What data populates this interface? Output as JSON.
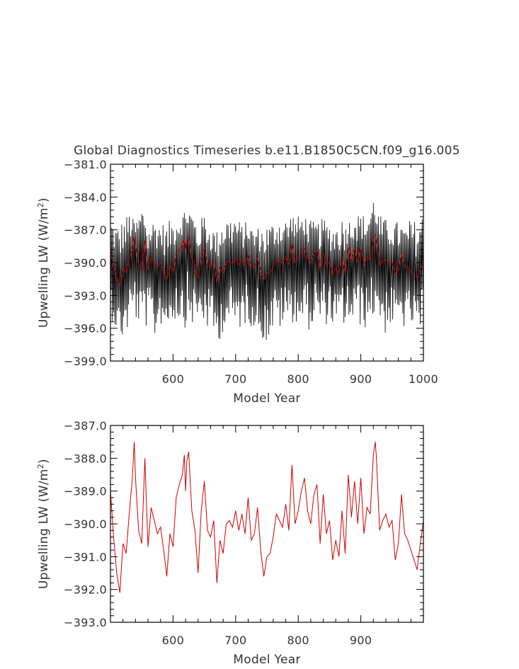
{
  "title": "Global Diagnostics Timeseries b.e11.B1850C5CN.f09_g16.005",
  "colors": {
    "annual": "#000000",
    "smoothed": "#cc0000",
    "axes": "#000000",
    "text": "#333333"
  },
  "chart_data": [
    {
      "type": "line",
      "ylabel_main": "Upwelling LW (W/m",
      "ylabel_sup": "2",
      "ylabel_end": ")",
      "xlabel": "Model Year",
      "xlim": [
        500,
        1000
      ],
      "ylim": [
        -399.0,
        -381.0
      ],
      "x_ticks": [
        600,
        700,
        800,
        900,
        1000
      ],
      "x_tick_labels": [
        "600",
        "700",
        "800",
        "900",
        "1000"
      ],
      "y_ticks": [
        -399.0,
        -396.0,
        -393.0,
        -390.0,
        -387.0,
        -384.0,
        -381.0
      ],
      "y_tick_labels": [
        "−399.0",
        "−396.0",
        "−393.0",
        "−390.0",
        "−387.0",
        "−384.0",
        "−381.0"
      ],
      "series": [
        {
          "role": "envelope",
          "color": "#000000",
          "x": [
            500,
            510,
            520,
            530,
            540,
            550,
            560,
            570,
            580,
            590,
            600,
            610,
            620,
            630,
            640,
            650,
            660,
            670,
            680,
            690,
            700,
            710,
            720,
            730,
            740,
            750,
            760,
            770,
            780,
            790,
            800,
            810,
            820,
            830,
            840,
            850,
            860,
            870,
            880,
            890,
            900,
            910,
            920,
            930,
            940,
            950,
            960,
            970,
            980,
            990,
            1000
          ],
          "upper": [
            -385.8,
            -386.5,
            -386.0,
            -385.3,
            -386.4,
            -384.3,
            -386.8,
            -385.9,
            -386.2,
            -386.5,
            -385.7,
            -385.9,
            -384.9,
            -385.0,
            -386.3,
            -385.5,
            -386.7,
            -387.0,
            -385.7,
            -385.8,
            -385.6,
            -386.5,
            -386.1,
            -386.9,
            -386.6,
            -386.4,
            -386.2,
            -385.8,
            -386.0,
            -385.4,
            -385.7,
            -385.6,
            -386.1,
            -386.4,
            -385.9,
            -386.4,
            -386.3,
            -385.9,
            -386.2,
            -385.3,
            -385.6,
            -385.4,
            -383.9,
            -385.6,
            -386.0,
            -386.1,
            -386.2,
            -386.8,
            -385.9,
            -386.2,
            -385.4
          ],
          "lower": [
            -395.0,
            -396.4,
            -397.3,
            -396.0,
            -395.5,
            -395.8,
            -396.1,
            -397.3,
            -395.7,
            -396.0,
            -395.3,
            -395.5,
            -396.0,
            -395.8,
            -395.3,
            -395.9,
            -396.5,
            -397.8,
            -396.3,
            -395.8,
            -396.5,
            -396.0,
            -395.5,
            -396.2,
            -396.9,
            -397.5,
            -396.3,
            -396.2,
            -395.9,
            -395.5,
            -395.7,
            -396.0,
            -396.3,
            -395.5,
            -396.1,
            -395.3,
            -396.3,
            -395.6,
            -396.3,
            -395.4,
            -396.0,
            -396.1,
            -395.1,
            -395.3,
            -396.7,
            -395.8,
            -396.0,
            -396.1,
            -395.8,
            -396.6,
            -396.3
          ]
        },
        {
          "role": "smoothed",
          "color": "#cc0000",
          "ref": "smoothed"
        }
      ]
    },
    {
      "type": "line",
      "ylabel_main": "Upwelling LW (W/m",
      "ylabel_sup": "2",
      "ylabel_end": ")",
      "xlabel": "Model Year",
      "xlim": [
        500,
        1000
      ],
      "ylim": [
        -393.0,
        -387.0
      ],
      "x_ticks": [
        600,
        700,
        800,
        900
      ],
      "x_tick_labels": [
        "600",
        "700",
        "800",
        "900"
      ],
      "y_ticks": [
        -393.0,
        -392.0,
        -391.0,
        -390.0,
        -389.0,
        -388.0,
        -387.0
      ],
      "y_tick_labels": [
        "−393.0",
        "−392.0",
        "−391.0",
        "−390.0",
        "−389.0",
        "−388.0",
        "−387.0"
      ],
      "series": [
        {
          "role": "smoothed",
          "color": "#cc0000",
          "ref": "smoothed"
        }
      ]
    }
  ],
  "smoothed": {
    "x": [
      500,
      505,
      510,
      515,
      520,
      525,
      530,
      535,
      538,
      540,
      545,
      550,
      555,
      560,
      565,
      570,
      575,
      580,
      585,
      590,
      595,
      600,
      605,
      610,
      615,
      618,
      620,
      622,
      625,
      628,
      630,
      635,
      640,
      645,
      650,
      655,
      660,
      665,
      670,
      675,
      680,
      685,
      690,
      695,
      700,
      705,
      710,
      715,
      720,
      725,
      730,
      735,
      740,
      745,
      750,
      755,
      760,
      765,
      770,
      775,
      780,
      785,
      790,
      795,
      800,
      805,
      810,
      815,
      820,
      825,
      830,
      835,
      840,
      845,
      850,
      855,
      860,
      865,
      870,
      875,
      880,
      885,
      890,
      895,
      900,
      905,
      910,
      915,
      920,
      923,
      925,
      930,
      935,
      940,
      945,
      950,
      955,
      960,
      965,
      970,
      975,
      980,
      985,
      990,
      995,
      1000
    ],
    "y": [
      -389.0,
      -390.4,
      -391.5,
      -392.1,
      -390.6,
      -390.9,
      -389.7,
      -388.6,
      -387.5,
      -388.6,
      -390.2,
      -390.6,
      -388.0,
      -390.7,
      -389.5,
      -389.9,
      -390.3,
      -390.1,
      -390.8,
      -391.6,
      -390.3,
      -390.7,
      -389.2,
      -388.8,
      -388.5,
      -387.9,
      -389.0,
      -388.1,
      -387.8,
      -388.9,
      -389.6,
      -390.2,
      -391.5,
      -389.6,
      -388.7,
      -390.2,
      -390.4,
      -389.9,
      -391.8,
      -390.5,
      -390.9,
      -390.0,
      -389.9,
      -390.1,
      -389.6,
      -390.2,
      -389.7,
      -390.3,
      -389.2,
      -390.5,
      -390.3,
      -389.5,
      -390.8,
      -391.6,
      -391.0,
      -390.9,
      -390.4,
      -389.7,
      -389.9,
      -390.1,
      -389.4,
      -390.2,
      -388.2,
      -390.0,
      -389.6,
      -389.0,
      -388.6,
      -389.6,
      -390.0,
      -389.1,
      -388.8,
      -390.6,
      -389.1,
      -390.3,
      -389.9,
      -391.1,
      -390.5,
      -391.0,
      -389.6,
      -390.9,
      -388.5,
      -389.8,
      -388.7,
      -390.0,
      -388.6,
      -390.3,
      -389.5,
      -389.7,
      -387.9,
      -387.5,
      -388.0,
      -390.2,
      -389.9,
      -389.7,
      -390.1,
      -389.9,
      -391.1,
      -390.6,
      -389.1,
      -390.3,
      -390.5,
      -390.8,
      -391.1,
      -391.4,
      -390.6,
      -389.9
    ]
  }
}
